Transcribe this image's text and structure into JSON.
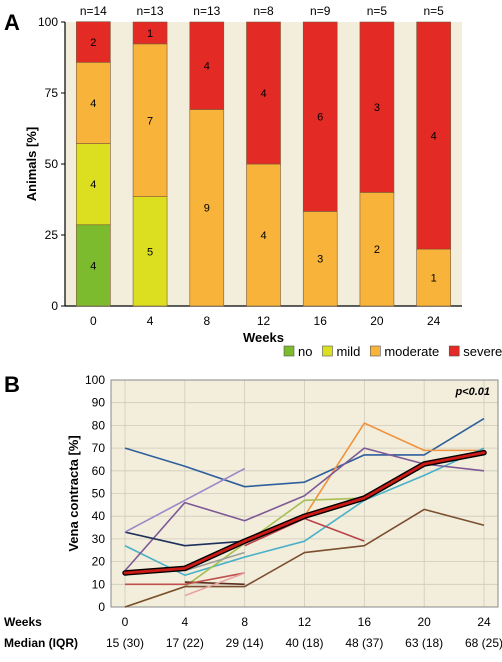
{
  "panel_a": {
    "letter": "A",
    "chart_data": {
      "type": "bar",
      "stacked": true,
      "categories": [
        "0",
        "4",
        "8",
        "12",
        "16",
        "20",
        "24"
      ],
      "n_labels": [
        "n=14",
        "n=13",
        "n=13",
        "n=8",
        "n=9",
        "n=5",
        "n=5"
      ],
      "xlabel": "Weeks",
      "ylabel": "Animals [%]",
      "ylim": [
        0,
        100
      ],
      "yticks": [
        "0",
        "25",
        "50",
        "75",
        "100"
      ],
      "grid": false,
      "legend_position": "bottom",
      "series": [
        {
          "name": "no",
          "color": "#7dbb2e",
          "counts": [
            4,
            0,
            0,
            0,
            0,
            0,
            0
          ],
          "values": [
            28.6,
            0,
            0,
            0,
            0,
            0,
            0
          ]
        },
        {
          "name": "mild",
          "color": "#dcdf1f",
          "counts": [
            4,
            5,
            0,
            0,
            0,
            0,
            0
          ],
          "values": [
            28.6,
            38.5,
            0,
            0,
            0,
            0,
            0
          ]
        },
        {
          "name": "moderate",
          "color": "#f8b33a",
          "counts": [
            4,
            7,
            9,
            4,
            3,
            2,
            1
          ],
          "values": [
            28.6,
            53.8,
            69.2,
            50.0,
            33.3,
            40.0,
            20.0
          ]
        },
        {
          "name": "severe",
          "color": "#e32a24",
          "counts": [
            2,
            1,
            4,
            4,
            6,
            3,
            4
          ],
          "values": [
            14.3,
            7.7,
            30.8,
            50.0,
            66.7,
            60.0,
            80.0
          ]
        }
      ]
    }
  },
  "panel_b": {
    "letter": "B",
    "chart_data": {
      "type": "line",
      "x": [
        0,
        4,
        8,
        12,
        16,
        20,
        24
      ],
      "xlabel": "Weeks",
      "ylabel": "Vena contracta [%]",
      "ylim": [
        0,
        100
      ],
      "yticks": [
        "0",
        "10",
        "20",
        "30",
        "40",
        "50",
        "60",
        "70",
        "80",
        "90",
        "100"
      ],
      "grid": true,
      "annotation": "p<0.01",
      "median_row_label": "Median (IQR)",
      "median_iqr": [
        "15 (30)",
        "17 (22)",
        "29 (14)",
        "40 (18)",
        "48 (37)",
        "63 (18)",
        "68 (25)"
      ],
      "median_line": {
        "color": "#cc1a16",
        "values": [
          15,
          17,
          29,
          40,
          48,
          63,
          68
        ]
      },
      "series": [
        {
          "color": "#2e5f9c",
          "values": [
            70,
            62,
            53,
            55,
            67,
            67,
            83
          ]
        },
        {
          "color": "#f0923e",
          "values": [
            null,
            18,
            28,
            40,
            81,
            69,
            69
          ]
        },
        {
          "color": "#4bb0c9",
          "values": [
            27,
            14,
            22,
            29,
            47,
            58,
            70
          ]
        },
        {
          "color": "#a7bf55",
          "values": [
            0,
            9,
            28,
            47,
            48,
            null,
            null
          ]
        },
        {
          "color": "#7d5a96",
          "values": [
            16,
            46,
            38,
            49,
            70,
            63,
            60
          ]
        },
        {
          "color": "#7a4e2e",
          "values": [
            0,
            9,
            9,
            24,
            27,
            43,
            36
          ]
        },
        {
          "color": "#5a2e1e",
          "values": [
            null,
            11,
            10,
            null,
            null,
            null,
            null
          ]
        },
        {
          "color": "#1d2f5a",
          "values": [
            33,
            27,
            29,
            null,
            null,
            null,
            null
          ]
        },
        {
          "color": "#c0504d",
          "values": [
            10,
            10,
            15,
            null,
            null,
            null,
            null
          ]
        },
        {
          "color": "#9a86c8",
          "values": [
            33,
            47,
            61,
            null,
            null,
            null,
            null
          ]
        },
        {
          "color": "#e8a3a3",
          "values": [
            null,
            5,
            15,
            null,
            null,
            null,
            null
          ]
        },
        {
          "color": "#b9434a",
          "values": [
            null,
            null,
            27,
            39,
            29,
            null,
            null
          ]
        },
        {
          "color": "#9f9f9f",
          "values": [
            null,
            16,
            24,
            null,
            null,
            null,
            null
          ]
        }
      ]
    }
  }
}
